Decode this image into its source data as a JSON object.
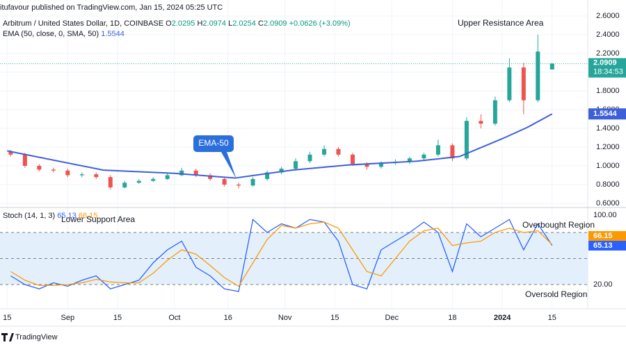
{
  "header": "itufavour published on TradingView.com, Jan 15, 2024 05:25 UTC",
  "footer": "TradingView",
  "chart_data": [
    {
      "type": "candlestick",
      "title": "Arbitrum / United States Dollar, 1D, COINBASE",
      "ohlc": [
        {
          "label": "O",
          "value": 2.0295
        },
        {
          "label": "H",
          "value": 2.0974
        },
        {
          "label": "L",
          "value": 2.0254
        },
        {
          "label": "C",
          "value": 2.0909
        }
      ],
      "change": {
        "value": 0.0626,
        "label": "+0.0626"
      },
      "change_pct": {
        "value": 3.09,
        "label": "(+3.09%)"
      },
      "x": [
        1,
        5,
        9,
        13,
        17,
        21,
        25,
        29,
        33,
        37,
        41,
        45,
        49,
        53,
        57,
        61,
        65,
        69,
        73,
        77,
        81,
        85,
        89,
        93,
        97,
        101,
        105,
        109,
        113,
        117,
        121,
        125,
        129,
        133,
        137,
        141,
        145,
        149,
        153
      ],
      "open": [
        1.15,
        1.12,
        1.0,
        0.96,
        0.95,
        0.9,
        0.91,
        0.88,
        0.77,
        0.82,
        0.84,
        0.86,
        0.9,
        0.95,
        0.9,
        0.86,
        0.8,
        0.79,
        0.86,
        0.93,
        0.97,
        1.05,
        1.12,
        1.18,
        1.12,
        1.02,
        0.99,
        1.03,
        1.04,
        1.08,
        1.12,
        1.22,
        1.08,
        1.48,
        1.45,
        1.7,
        2.05,
        1.7,
        2.0295
      ],
      "high": [
        1.17,
        1.14,
        1.02,
        0.98,
        0.97,
        0.93,
        0.93,
        0.9,
        0.84,
        0.86,
        0.88,
        0.92,
        0.98,
        0.97,
        0.92,
        0.88,
        0.82,
        0.88,
        0.95,
        0.99,
        1.08,
        1.15,
        1.22,
        1.2,
        1.14,
        1.04,
        1.05,
        1.07,
        1.1,
        1.14,
        1.28,
        1.24,
        1.52,
        1.55,
        1.74,
        2.15,
        2.1,
        2.4,
        2.0974
      ],
      "low": [
        1.1,
        0.98,
        0.94,
        0.93,
        0.88,
        0.88,
        0.86,
        0.75,
        0.76,
        0.81,
        0.83,
        0.85,
        0.89,
        0.88,
        0.84,
        0.78,
        0.76,
        0.78,
        0.84,
        0.91,
        0.95,
        1.03,
        1.1,
        1.1,
        1.0,
        0.96,
        0.97,
        1.01,
        1.02,
        1.06,
        1.1,
        1.05,
        1.06,
        1.4,
        1.43,
        1.68,
        1.55,
        1.68,
        2.0254
      ],
      "close": [
        1.12,
        1.0,
        0.96,
        0.95,
        0.9,
        0.91,
        0.88,
        0.77,
        0.82,
        0.84,
        0.86,
        0.9,
        0.95,
        0.9,
        0.86,
        0.8,
        0.79,
        0.86,
        0.93,
        0.97,
        1.05,
        1.12,
        1.18,
        1.12,
        1.02,
        0.99,
        1.03,
        1.04,
        1.08,
        1.12,
        1.22,
        1.08,
        1.48,
        1.45,
        1.7,
        2.05,
        1.7,
        2.22,
        2.0909
      ],
      "up_color": "#26a69a",
      "down_color": "#ef5350",
      "ema": {
        "name": "EMA (50, close, 0, SMA, 50)",
        "color": "#3d5fd9",
        "x": [
          0,
          27,
          47,
          64,
          80,
          96,
          115,
          127,
          139,
          146,
          153
        ],
        "values": [
          1.16,
          0.955,
          0.92,
          0.87,
          0.955,
          1.01,
          1.05,
          1.1,
          1.29,
          1.41,
          1.5544
        ]
      },
      "countdown": "18:34:53",
      "ylim": [
        0.563,
        2.637
      ],
      "yticks": [
        {
          "value": 0.6,
          "label": "0.6000"
        },
        {
          "value": 0.8,
          "label": "0.8000"
        },
        {
          "value": 1.0,
          "label": "1.0000"
        },
        {
          "value": 1.2,
          "label": "1.2000"
        },
        {
          "value": 1.4,
          "label": "1.4000"
        },
        {
          "value": 1.6,
          "label": "1.6000"
        },
        {
          "value": 1.8,
          "label": "1.8000"
        },
        {
          "value": 2.0,
          "label": "2.0000"
        },
        {
          "value": 2.2,
          "label": "2.2000"
        },
        {
          "value": 2.4,
          "label": "2.4000"
        },
        {
          "value": 2.6,
          "label": "2.6000"
        }
      ],
      "grid": true,
      "annotations": [
        "Upper Resistance Area",
        "EMA-50"
      ]
    },
    {
      "type": "line",
      "title": "Stoch (14, 1, 3)",
      "x": [
        1,
        5,
        9,
        13,
        17,
        21,
        25,
        29,
        33,
        37,
        41,
        45,
        49,
        53,
        57,
        61,
        65,
        69,
        73,
        77,
        81,
        85,
        89,
        93,
        97,
        101,
        105,
        109,
        113,
        117,
        121,
        125,
        129,
        133,
        137,
        141,
        145,
        149,
        153
      ],
      "series": [
        {
          "color": "#2962ff",
          "values": [
            30,
            20,
            15,
            22,
            18,
            25,
            30,
            15,
            20,
            25,
            45,
            60,
            70,
            40,
            30,
            15,
            12,
            95,
            80,
            90,
            85,
            95,
            92,
            70,
            20,
            15,
            60,
            70,
            80,
            92,
            80,
            35,
            90,
            75,
            85,
            95,
            60,
            90,
            65.13
          ]
        },
        {
          "color": "#ff9800",
          "values": [
            35,
            25,
            19,
            19,
            20,
            22,
            26,
            23,
            22,
            22,
            33,
            48,
            60,
            55,
            42,
            28,
            18,
            45,
            72,
            88,
            85,
            90,
            92,
            85,
            60,
            35,
            30,
            50,
            70,
            82,
            85,
            65,
            68,
            70,
            80,
            85,
            80,
            82,
            66.15
          ]
        }
      ],
      "levels": [
        80,
        50,
        20
      ],
      "band_color": "#e3f0fc",
      "ylim": [
        -4,
        108
      ],
      "yticks": [
        {
          "value": 100,
          "label": "100.00"
        },
        {
          "value": 20,
          "label": "20.00"
        }
      ],
      "xlim": [
        -2,
        163
      ],
      "xticks": [
        {
          "value": 0,
          "label": "15"
        },
        {
          "value": 17,
          "label": "Sep"
        },
        {
          "value": 31,
          "label": "15"
        },
        {
          "value": 47,
          "label": "Oct"
        },
        {
          "value": 62,
          "label": "16"
        },
        {
          "value": 78,
          "label": "Nov"
        },
        {
          "value": 92,
          "label": "15"
        },
        {
          "value": 108,
          "label": "Dec"
        },
        {
          "value": 125,
          "label": "18"
        },
        {
          "value": 139,
          "label": "2024"
        },
        {
          "value": 153,
          "label": "15"
        }
      ],
      "annotations": [
        "Lower Support Area",
        "Overbought Region",
        "Oversold Region"
      ]
    }
  ]
}
